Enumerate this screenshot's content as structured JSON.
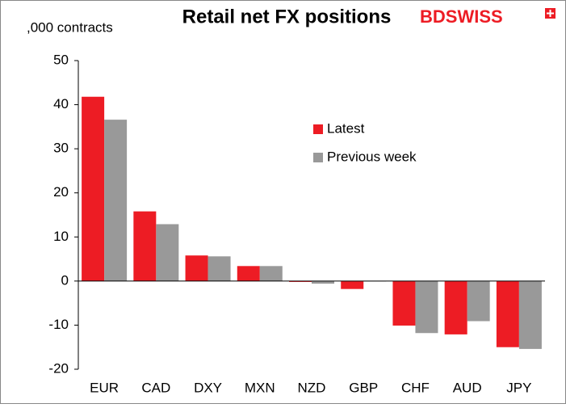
{
  "chart_data": {
    "type": "bar",
    "title": "Retail net FX positions",
    "y_label": ",000 contracts",
    "brand": "BDSWISS",
    "categories": [
      "EUR",
      "CAD",
      "DXY",
      "MXN",
      "NZD",
      "GBP",
      "CHF",
      "AUD",
      "JPY"
    ],
    "series": [
      {
        "name": "Latest",
        "color": "#ed1c24",
        "values": [
          41.8,
          15.8,
          5.8,
          3.4,
          -0.2,
          -1.8,
          -10.1,
          -12.1,
          -15.0
        ]
      },
      {
        "name": "Previous week",
        "color": "#999999",
        "values": [
          36.6,
          12.9,
          5.6,
          3.4,
          -0.6,
          -0.1,
          -11.8,
          -9.1,
          -15.4
        ]
      }
    ],
    "ylim": [
      -20,
      50
    ],
    "yticks": [
      -20,
      -10,
      0,
      10,
      20,
      30,
      40,
      50
    ],
    "grid": false
  }
}
